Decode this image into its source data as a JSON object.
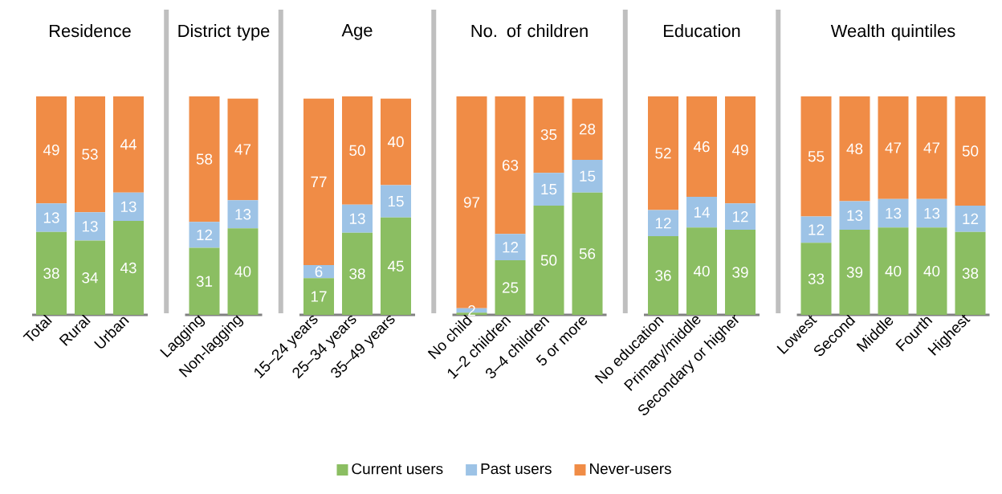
{
  "chart_data": [
    {
      "type": "bar",
      "stacked": true,
      "title": "Residence",
      "categories": [
        "Total",
        "Rural",
        "Urban"
      ],
      "tick_labels": "x",
      "data_labels": true,
      "series": [
        {
          "color": "#8bbe62",
          "values": [
            38,
            34,
            43
          ]
        },
        {
          "color": "#9dc3e6",
          "values": [
            13,
            13,
            13
          ]
        },
        {
          "color": "#f08c46",
          "values": [
            49,
            53,
            44
          ]
        }
      ]
    },
    {
      "type": "bar",
      "stacked": true,
      "title": "District type",
      "categories": [
        "Lagging",
        "Non-lagging"
      ],
      "tick_labels": "x",
      "data_labels": true,
      "series": [
        {
          "color": "#8bbe62",
          "values": [
            31,
            40
          ]
        },
        {
          "color": "#9dc3e6",
          "values": [
            12,
            13
          ]
        },
        {
          "color": "#f08c46",
          "values": [
            58,
            47
          ]
        }
      ]
    },
    {
      "type": "bar",
      "stacked": true,
      "title": "Age",
      "categories": [
        "15–24 years",
        "25–34 years",
        "35–49 years"
      ],
      "tick_labels": "x",
      "data_labels": true,
      "series": [
        {
          "color": "#8bbe62",
          "values": [
            17,
            38,
            45
          ]
        },
        {
          "color": "#9dc3e6",
          "values": [
            6,
            13,
            15
          ]
        },
        {
          "color": "#f08c46",
          "values": [
            77,
            50,
            40
          ]
        }
      ]
    },
    {
      "type": "bar",
      "stacked": true,
      "title": "No. of children",
      "categories": [
        "No child",
        "1–2 children",
        "3–4 children",
        "5 or more"
      ],
      "tick_labels": "x",
      "legend": "bottom",
      "series": [
        {
          "name": "Current users",
          "color": "#8bbe62",
          "values": [
            1,
            25,
            50,
            56
          ],
          "value_labels": [
            null,
            "25",
            "50",
            "56"
          ]
        },
        {
          "name": "Past users",
          "color": "#9dc3e6",
          "values": [
            2,
            12,
            15,
            15
          ],
          "value_labels": [
            "2",
            "12",
            "15",
            "15"
          ]
        },
        {
          "name": "Never-users",
          "color": "#f08c46",
          "values": [
            97,
            63,
            35,
            28
          ],
          "value_labels": [
            "97",
            "63",
            "35",
            "28"
          ]
        }
      ]
    },
    {
      "type": "bar",
      "stacked": true,
      "title": "Education",
      "categories": [
        "No education",
        "Primary/middle",
        "Secondary or higher"
      ],
      "tick_labels": "x",
      "data_labels": true,
      "series": [
        {
          "color": "#8bbe62",
          "values": [
            36,
            40,
            39
          ]
        },
        {
          "color": "#9dc3e6",
          "values": [
            12,
            14,
            12
          ]
        },
        {
          "color": "#f08c46",
          "values": [
            52,
            46,
            49
          ]
        }
      ]
    },
    {
      "type": "bar",
      "stacked": true,
      "title": "Wealth quintiles",
      "categories": [
        "Lowest",
        "Second",
        "Middle",
        "Fourth",
        "Highest"
      ],
      "tick_labels": "x",
      "data_labels": true,
      "series": [
        {
          "color": "#8bbe62",
          "values": [
            33,
            39,
            40,
            40,
            38
          ]
        },
        {
          "color": "#9dc3e6",
          "values": [
            12,
            13,
            13,
            13,
            12
          ]
        },
        {
          "color": "#f08c46",
          "values": [
            55,
            48,
            47,
            47,
            50
          ]
        }
      ]
    }
  ]
}
